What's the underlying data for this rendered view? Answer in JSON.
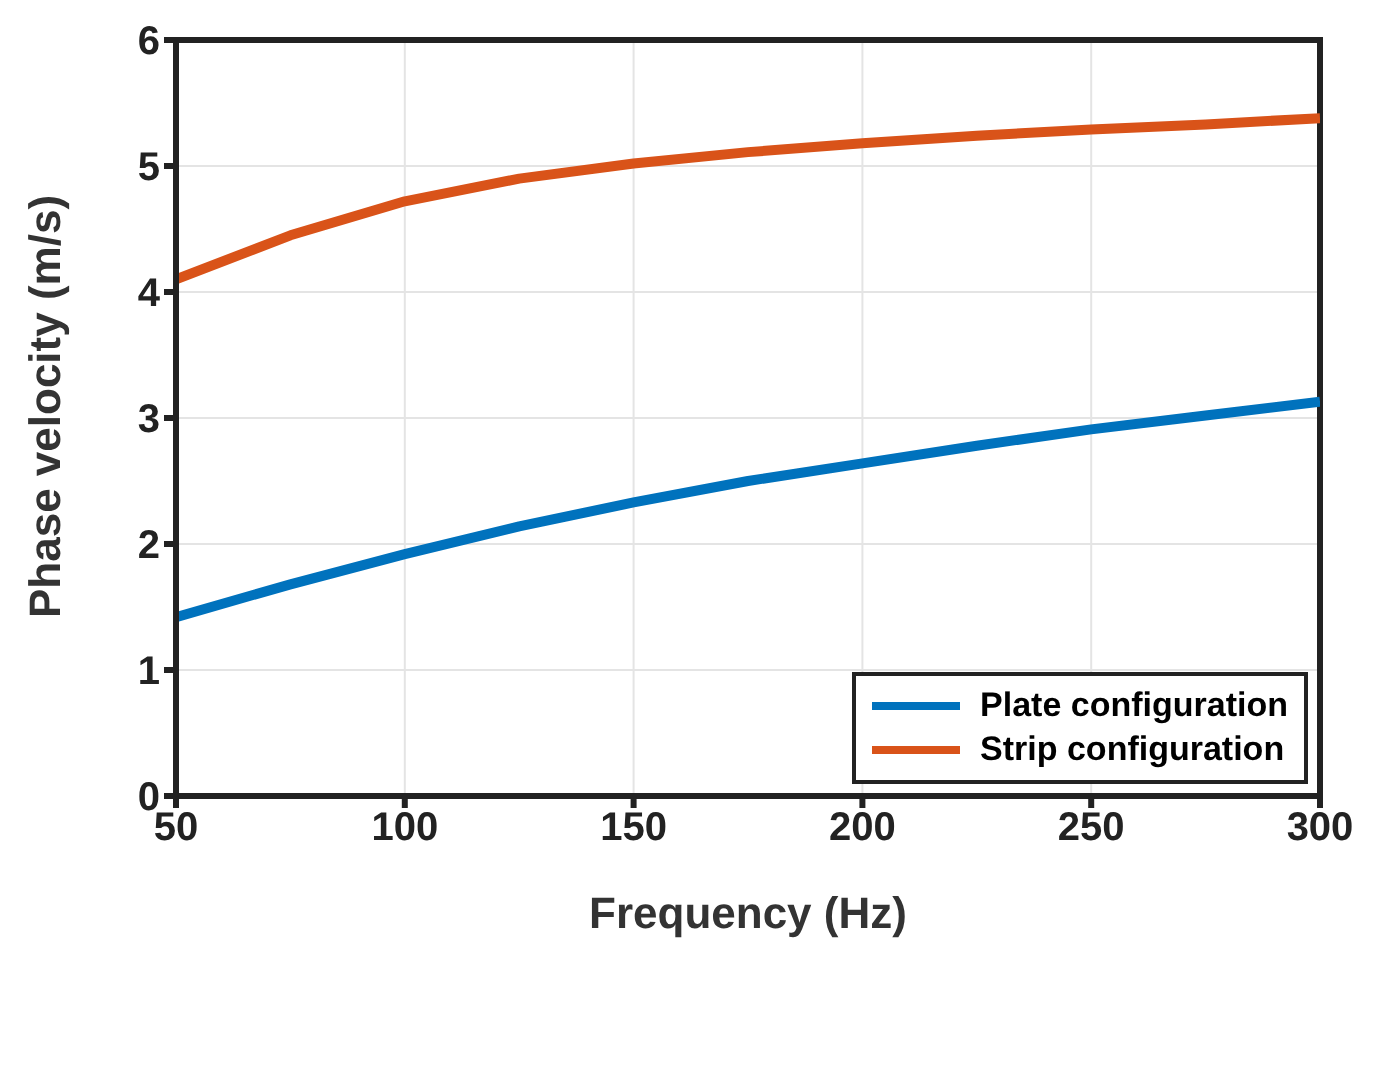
{
  "chart_data": {
    "type": "line",
    "xlabel": "Frequency (Hz)",
    "ylabel": "Phase velocity (m/s)",
    "x": [
      50,
      75,
      100,
      125,
      150,
      175,
      200,
      225,
      250,
      275,
      300
    ],
    "series": [
      {
        "name": "Plate configuration",
        "color": "#0072bd",
        "values": [
          1.42,
          1.68,
          1.92,
          2.14,
          2.33,
          2.5,
          2.64,
          2.78,
          2.91,
          3.02,
          3.13
        ]
      },
      {
        "name": "Strip configuration",
        "color": "#d95319",
        "values": [
          4.1,
          4.45,
          4.72,
          4.9,
          5.02,
          5.11,
          5.18,
          5.24,
          5.29,
          5.33,
          5.38
        ]
      }
    ],
    "xlim": [
      50,
      300
    ],
    "xticks": [
      50,
      100,
      150,
      200,
      250,
      300
    ],
    "ylim": [
      0,
      6
    ],
    "yticks": [
      0,
      1,
      2,
      3,
      4,
      5,
      6
    ],
    "grid": true,
    "legend": "bottom right",
    "marker": "none",
    "line_style": "solid"
  }
}
